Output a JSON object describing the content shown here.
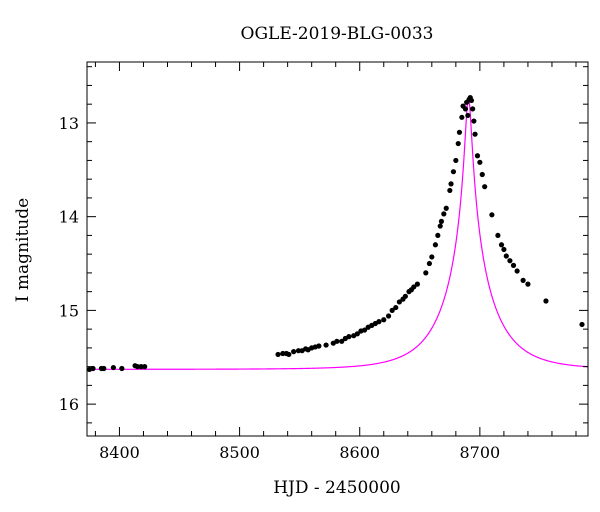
{
  "chart_data": {
    "type": "scatter",
    "title": "OGLE-2019-BLG-0033",
    "xlabel": "HJD - 2450000",
    "ylabel": "I magnitude",
    "xlim": [
      8373,
      8790
    ],
    "ylim": [
      16.34,
      12.35
    ],
    "y_inverted": true,
    "x_ticks": [
      8400,
      8500,
      8600,
      8700
    ],
    "x_tick_labels": [
      "8400",
      "8500",
      "8600",
      "8700"
    ],
    "x_minor_step": 20,
    "y_ticks": [
      13,
      14,
      15,
      16
    ],
    "y_tick_labels": [
      "13",
      "14",
      "15",
      "16"
    ],
    "y_minor_step": 0.2,
    "grid": false,
    "legend": "none",
    "colors": {
      "data": "#000000",
      "model": "#ff00ff",
      "frame": "#000000"
    },
    "series": [
      {
        "kind": "scatter",
        "x": [
          8375,
          8378,
          8385,
          8387,
          8395,
          8402,
          8413,
          8415,
          8418,
          8421,
          8532,
          8536,
          8539,
          8541,
          8545,
          8549,
          8552,
          8555,
          8557,
          8560,
          8563,
          8566,
          8572,
          8578,
          8581,
          8585,
          8588,
          8591,
          8595,
          8598,
          8601,
          8604,
          8607,
          8610,
          8613,
          8616,
          8620,
          8624,
          8627,
          8630,
          8633,
          8636,
          8638,
          8641,
          8643,
          8645,
          8648,
          8655,
          8658,
          8660,
          8663,
          8665,
          8667,
          8668,
          8670,
          8672,
          8675,
          8676,
          8678,
          8680,
          8682,
          8683,
          8685,
          8686,
          8688,
          8689,
          8690,
          8691,
          8692,
          8693,
          8694,
          8695,
          8696,
          8698,
          8700,
          8702,
          8704,
          8710,
          8715,
          8718,
          8720,
          8722,
          8725,
          8728,
          8731,
          8736,
          8740,
          8755,
          8785
        ],
        "y": [
          15.63,
          15.62,
          15.62,
          15.62,
          15.61,
          15.62,
          15.59,
          15.6,
          15.6,
          15.6,
          15.47,
          15.46,
          15.46,
          15.47,
          15.44,
          15.43,
          15.43,
          15.41,
          15.42,
          15.4,
          15.39,
          15.38,
          15.37,
          15.35,
          15.33,
          15.33,
          15.3,
          15.28,
          15.27,
          15.25,
          15.22,
          15.21,
          15.18,
          15.16,
          15.14,
          15.12,
          15.1,
          15.06,
          15.0,
          14.97,
          14.91,
          14.88,
          14.85,
          14.8,
          14.78,
          14.75,
          14.72,
          14.6,
          14.5,
          14.43,
          14.3,
          14.2,
          14.1,
          14.05,
          13.97,
          13.91,
          13.72,
          13.65,
          13.52,
          13.4,
          13.22,
          13.1,
          12.94,
          12.82,
          12.85,
          12.78,
          12.92,
          12.75,
          12.73,
          12.76,
          12.85,
          12.98,
          13.12,
          13.35,
          13.42,
          13.55,
          13.68,
          13.98,
          14.2,
          14.3,
          14.35,
          14.42,
          14.47,
          14.52,
          14.58,
          14.68,
          14.72,
          14.9,
          15.15
        ]
      },
      {
        "kind": "line",
        "model": "pspl",
        "t0": 8690.5,
        "u0": 0.063,
        "tE": 39.0,
        "I_base": 15.629,
        "I_peak": 12.73
      }
    ]
  }
}
